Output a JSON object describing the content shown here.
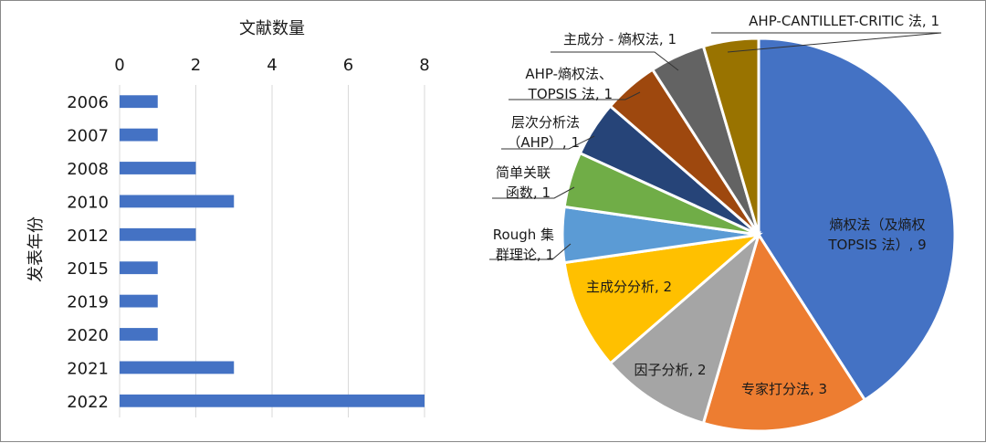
{
  "chart_data": [
    {
      "type": "bar",
      "orientation": "horizontal",
      "xlabel": "文献数量",
      "ylabel": "发表年份",
      "xlim": [
        0,
        8
      ],
      "xticks": [
        "0",
        "2",
        "4",
        "6",
        "8"
      ],
      "categories": [
        "2006",
        "2007",
        "2008",
        "2010",
        "2012",
        "2015",
        "2019",
        "2020",
        "2021",
        "2022"
      ],
      "values": [
        1,
        1,
        2,
        3,
        2,
        1,
        1,
        1,
        3,
        8
      ],
      "color": "#4472C4",
      "grid": "vertical"
    },
    {
      "type": "pie",
      "start": "12 o'clock, clockwise",
      "slices": [
        {
          "label": [
            "熵权法（及熵权",
            "TOPSIS 法）, 9"
          ],
          "value": 9,
          "color": "#4472C4"
        },
        {
          "label": [
            "专家打分法, 3"
          ],
          "value": 3,
          "color": "#ED7D31"
        },
        {
          "label": [
            "因子分析, 2"
          ],
          "value": 2,
          "color": "#A5A5A5"
        },
        {
          "label": [
            "主成分分析, 2"
          ],
          "value": 2,
          "color": "#FFC000"
        },
        {
          "label": [
            "Rough 集",
            "群理论, 1"
          ],
          "value": 1,
          "color": "#5B9BD5"
        },
        {
          "label": [
            "简单关联",
            "函数, 1"
          ],
          "value": 1,
          "color": "#70AD47"
        },
        {
          "label": [
            "层次分析法",
            "（AHP）, 1"
          ],
          "value": 1,
          "color": "#264478"
        },
        {
          "label": [
            "AHP-熵权法、",
            "TOPSIS 法, 1"
          ],
          "value": 1,
          "color": "#9E480E"
        },
        {
          "label": [
            "主成分 - 熵权法, 1"
          ],
          "value": 1,
          "color": "#636363"
        },
        {
          "label": [
            "AHP-CANTILLET-CRITIC 法, 1"
          ],
          "value": 1,
          "color": "#997300"
        }
      ]
    }
  ]
}
